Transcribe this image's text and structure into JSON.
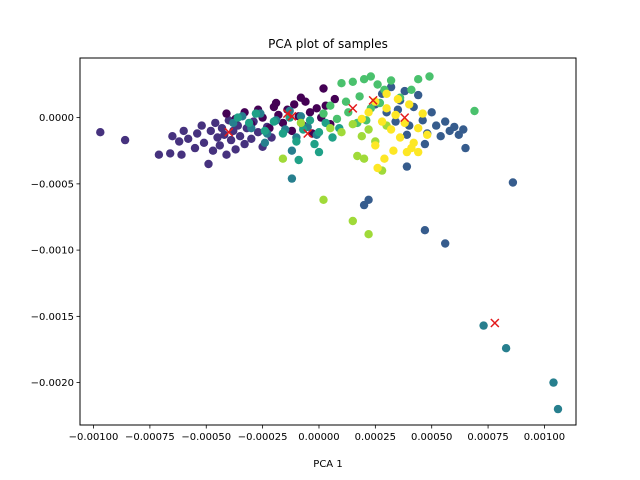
{
  "chart_data": {
    "type": "scatter",
    "title": "PCA plot of samples",
    "xlabel": "PCA 1",
    "ylabel": "",
    "xlim": [
      -0.00106,
      0.00114
    ],
    "ylim": [
      -0.00232,
      0.00045
    ],
    "xticks": [
      -0.001,
      -0.00075,
      -0.0005,
      -0.00025,
      0.0,
      0.00025,
      0.0005,
      0.00075,
      0.001
    ],
    "xtick_labels": [
      "−0.00100",
      "−0.00075",
      "−0.00050",
      "−0.00025",
      "0.00000",
      "0.00025",
      "0.00050",
      "0.00075",
      "0.00100"
    ],
    "yticks": [
      0.0,
      -0.0005,
      -0.001,
      -0.0015,
      -0.002
    ],
    "ytick_labels": [
      "0.0000",
      "−0.0005",
      "−0.0010",
      "−0.0015",
      "−0.0020"
    ],
    "grid": false,
    "legend": "none",
    "marker_colors": {
      "c0": "#440154",
      "c1": "#46327e",
      "c2": "#365c8d",
      "c3": "#277f8e",
      "c4": "#1fa187",
      "c5": "#4ac16d",
      "c6": "#a0da39",
      "c7": "#fde725"
    },
    "centroid_color": "#e31a1c",
    "series": [
      {
        "color_key": "c1",
        "points": [
          [
            -0.00097,
            -0.00011
          ],
          [
            -0.00086,
            -0.00017
          ],
          [
            -0.00071,
            -0.00028
          ],
          [
            -0.00066,
            -0.00027
          ],
          [
            -0.00065,
            -0.00014
          ],
          [
            -0.00062,
            -0.00018
          ],
          [
            -0.00061,
            -0.00028
          ],
          [
            -0.0006,
            -0.0001
          ],
          [
            -0.00058,
            -0.00016
          ],
          [
            -0.00055,
            -0.00023
          ],
          [
            -0.00054,
            -0.00012
          ],
          [
            -0.00052,
            -6e-05
          ],
          [
            -0.00051,
            -0.00019
          ],
          [
            -0.00049,
            -0.00035
          ],
          [
            -0.00048,
            -0.0001
          ],
          [
            -0.00047,
            -0.00025
          ],
          [
            -0.00046,
            -4e-05
          ],
          [
            -0.00045,
            -0.00015
          ],
          [
            -0.00044,
            -0.00021
          ],
          [
            -0.00043,
            -8e-05
          ],
          [
            -0.00042,
            -0.00013
          ],
          [
            -0.00041,
            -0.00028
          ],
          [
            -0.0004,
            -2e-05
          ],
          [
            -0.00039,
            -0.00017
          ],
          [
            -0.00038,
            -0.0001
          ],
          [
            -0.00037,
            -0.00024
          ],
          [
            -0.00036,
            -6e-05
          ],
          [
            -0.00035,
            -0.00014
          ],
          [
            -0.00033,
            -0.0002
          ],
          [
            -0.00032,
            -8e-05
          ],
          [
            -0.0003,
            -0.00016
          ],
          [
            -0.00029,
            -3e-05
          ],
          [
            -0.00027,
            -0.00011
          ],
          [
            -0.00025,
            -0.00022
          ],
          [
            -0.00023,
            -7e-05
          ],
          [
            -0.00021,
            -0.00015
          ],
          [
            -0.00019,
            -2e-05
          ]
        ]
      },
      {
        "color_key": "c0",
        "points": [
          [
            -0.00041,
            3e-05
          ],
          [
            -0.00037,
            -1e-05
          ],
          [
            -0.00033,
            4e-05
          ],
          [
            -0.0003,
            -5e-05
          ],
          [
            -0.00027,
            6e-05
          ],
          [
            -0.00025,
            0.0
          ],
          [
            -0.00022,
            -8e-05
          ],
          [
            -0.0002,
            8e-05
          ],
          [
            -0.00018,
            2e-05
          ],
          [
            -0.00016,
            -4e-05
          ],
          [
            -0.00014,
            6e-05
          ],
          [
            -0.00012,
            -0.0001
          ],
          [
            -0.00011,
            0.0001
          ],
          [
            -9e-05,
            1e-05
          ],
          [
            -7e-05,
            -6e-05
          ],
          [
            -6e-05,
            0.00012
          ],
          [
            -4e-05,
            4e-05
          ],
          [
            -3e-05,
            -0.00012
          ],
          [
            -1e-05,
            7e-05
          ],
          [
            1e-05,
            0.0
          ],
          [
            2e-05,
            0.00022
          ],
          [
            3e-05,
            9e-05
          ],
          [
            5e-05,
            -5e-05
          ],
          [
            7e-05,
            0.00014
          ],
          [
            -8e-05,
            0.00015
          ],
          [
            -0.00019,
            0.00011
          ]
        ]
      },
      {
        "color_key": "c2",
        "points": [
          [
            0.00025,
            0.0001
          ],
          [
            0.00028,
            0.00018
          ],
          [
            0.0003,
            4e-05
          ],
          [
            0.00032,
            0.00023
          ],
          [
            0.00034,
            -3e-05
          ],
          [
            0.00036,
            0.00013
          ],
          [
            0.00038,
            0.0002
          ],
          [
            0.0004,
            -6e-05
          ],
          [
            0.00042,
            8e-05
          ],
          [
            0.00044,
            0.00017
          ],
          [
            0.00046,
            -2e-05
          ],
          [
            0.00048,
            -0.00012
          ],
          [
            0.0005,
            4e-05
          ],
          [
            0.00052,
            -6e-05
          ],
          [
            0.00054,
            -0.00014
          ],
          [
            0.00056,
            -3e-05
          ],
          [
            0.00058,
            -0.0001
          ],
          [
            0.0006,
            -7e-05
          ],
          [
            0.00062,
            -0.00013
          ],
          [
            0.00064,
            -9e-05
          ],
          [
            0.00065,
            -0.00023
          ],
          [
            0.00047,
            -0.0002
          ],
          [
            0.00039,
            -0.00013
          ],
          [
            0.00035,
            6e-05
          ],
          [
            0.00086,
            -0.00049
          ],
          [
            0.00039,
            -0.00037
          ],
          [
            0.00022,
            -0.00062
          ],
          [
            0.0002,
            -0.00066
          ],
          [
            0.00047,
            -0.00085
          ],
          [
            0.00056,
            -0.00095
          ]
        ]
      },
      {
        "color_key": "c3",
        "points": [
          [
            -0.00038,
            -4e-05
          ],
          [
            -0.00034,
            1e-05
          ],
          [
            -0.0003,
            -8e-05
          ],
          [
            -0.00026,
            3e-05
          ],
          [
            -0.00023,
            -0.00012
          ],
          [
            -0.00019,
            -2e-05
          ],
          [
            -0.00015,
            -9e-05
          ],
          [
            -0.00013,
            5e-05
          ],
          [
            -0.0001,
            -0.00015
          ],
          [
            -8e-05,
            1e-05
          ],
          [
            -5e-05,
            -7e-05
          ],
          [
            -0.00012,
            -0.00025
          ],
          [
            -0.00024,
            -0.00019
          ],
          [
            -0.00012,
            -0.00046
          ],
          [
            -1e-05,
            -0.00013
          ],
          [
            0.00073,
            -0.00157
          ],
          [
            0.00083,
            -0.00174
          ],
          [
            0.00104,
            -0.002
          ],
          [
            0.00106,
            -0.0022
          ]
        ]
      },
      {
        "color_key": "c4",
        "points": [
          [
            -0.00036,
            0.0
          ],
          [
            -0.00031,
            -4e-05
          ],
          [
            -0.00028,
            3e-05
          ],
          [
            -0.00024,
            -0.0001
          ],
          [
            -0.0002,
            -3e-05
          ],
          [
            -0.00016,
            -0.00012
          ],
          [
            -0.00013,
            0.0
          ],
          [
            -0.0001,
            -0.00018
          ],
          [
            -7e-05,
            -9e-05
          ],
          [
            -4e-05,
            -2e-05
          ],
          [
            -2e-05,
            -0.0002
          ],
          [
            0.0,
            -0.00011
          ],
          [
            3e-05,
            -4e-05
          ],
          [
            6e-05,
            -0.00015
          ],
          [
            9e-05,
            -8e-05
          ],
          [
            -9e-05,
            -0.00032
          ],
          [
            0.0,
            -0.00026
          ]
        ]
      },
      {
        "color_key": "c5",
        "points": [
          [
            0.0001,
            0.00026
          ],
          [
            0.00015,
            0.00027
          ],
          [
            0.0002,
            0.00029
          ],
          [
            0.00023,
            0.00031
          ],
          [
            0.00026,
            0.00025
          ],
          [
            0.00029,
            0.00021
          ],
          [
            0.00032,
            0.00028
          ],
          [
            0.00036,
            0.00015
          ],
          [
            0.00041,
            0.00021
          ],
          [
            0.00044,
            0.00029
          ],
          [
            0.00049,
            0.00031
          ],
          [
            0.00069,
            5e-05
          ],
          [
            0.00012,
            0.00012
          ],
          [
            0.00018,
            0.00016
          ],
          [
            0.00023,
            7e-05
          ],
          [
            0.00027,
            0.00011
          ],
          [
            5e-05,
            9e-05
          ],
          [
            8e-05,
            -1e-05
          ],
          [
            0.00013,
            4e-05
          ],
          [
            0.00017,
            -4e-05
          ],
          [
            2e-05,
            3e-05
          ],
          [
            0.00021,
            -2e-05
          ]
        ]
      },
      {
        "color_key": "c6",
        "points": [
          [
            5e-05,
            -8e-05
          ],
          [
            0.0001,
            -0.00011
          ],
          [
            0.00015,
            -5e-05
          ],
          [
            0.00019,
            -0.00014
          ],
          [
            0.00022,
            -9e-05
          ],
          [
            0.00025,
            -0.00018
          ],
          [
            0.0003,
            -6e-05
          ],
          [
            0.00017,
            -0.00029
          ],
          [
            0.0002,
            -0.00031
          ],
          [
            0.00028,
            -0.0004
          ],
          [
            2e-05,
            -0.00062
          ],
          [
            0.00015,
            -0.00078
          ],
          [
            0.00022,
            -0.00088
          ],
          [
            -0.00016,
            -0.00031
          ],
          [
            -8e-05,
            -4e-05
          ]
        ]
      },
      {
        "color_key": "c7",
        "points": [
          [
            0.00022,
            4e-05
          ],
          [
            0.00025,
            0.00012
          ],
          [
            0.00028,
            -3e-05
          ],
          [
            0.0003,
            7e-05
          ],
          [
            0.00032,
            -9e-05
          ],
          [
            0.00034,
            2e-05
          ],
          [
            0.00036,
            -0.00015
          ],
          [
            0.00038,
            -4e-05
          ],
          [
            0.0004,
            0.0001
          ],
          [
            0.00042,
            -0.00019
          ],
          [
            0.00044,
            -8e-05
          ],
          [
            0.00046,
            3e-05
          ],
          [
            0.00048,
            -0.00013
          ],
          [
            0.00039,
            -0.00026
          ],
          [
            0.00041,
            -0.00023
          ],
          [
            0.00044,
            -0.00026
          ],
          [
            0.00029,
            -0.00031
          ],
          [
            0.00025,
            -0.00021
          ],
          [
            0.00026,
            -0.00038
          ],
          [
            0.00035,
            0.00014
          ],
          [
            0.0003,
            0.00018
          ],
          [
            0.00033,
            -0.00025
          ],
          [
            0.00019,
            -1e-05
          ]
        ]
      }
    ],
    "centroids": [
      [
        -0.0004,
        -0.00011
      ],
      [
        -0.00014,
        3e-05
      ],
      [
        -0.00012,
        1e-05
      ],
      [
        -5e-05,
        -0.00012
      ],
      [
        0.00015,
        7e-05
      ],
      [
        0.00024,
        0.00013
      ],
      [
        0.00038,
        0.0
      ],
      [
        0.00078,
        -0.00155
      ]
    ]
  }
}
